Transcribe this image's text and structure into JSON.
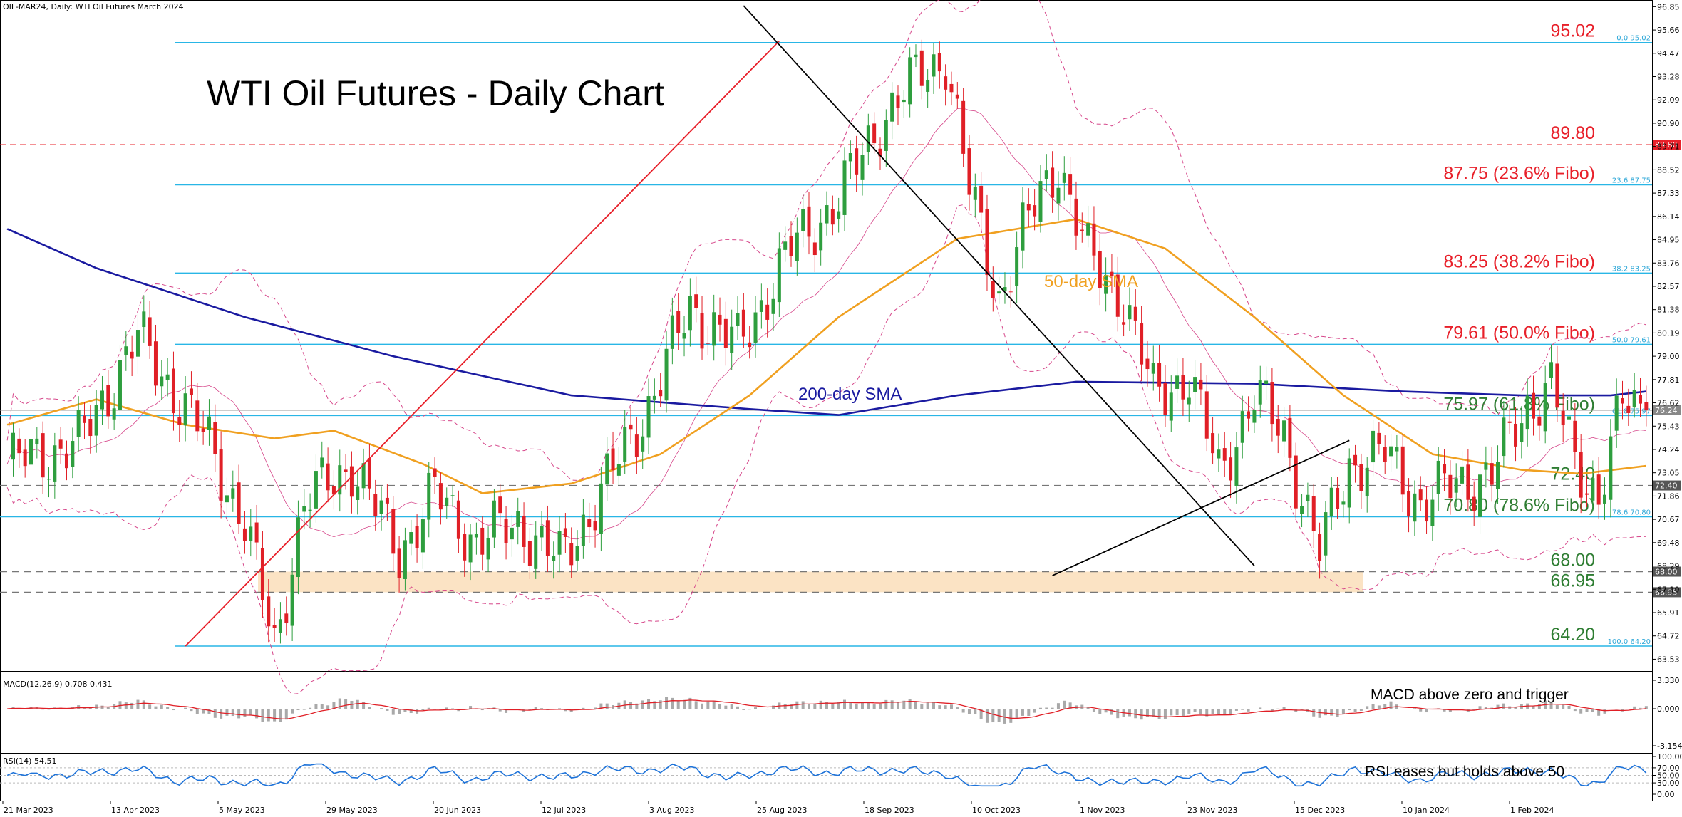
{
  "header": {
    "symbol": "OIL-MAR24, Daily:  WTI Oil Futures March 2024",
    "title": "WTI Oil Futures - Daily Chart"
  },
  "labels": {
    "sma50": "50-day SMA",
    "sma200": "200-day SMA",
    "macd_info": "MACD(12,26,9) 0.708 0.431",
    "rsi_info": "RSI(14) 54.51",
    "macd_note": "MACD above zero and trigger",
    "rsi_note": "RSI eases but holds above 50"
  },
  "levels": [
    {
      "text": "95.02",
      "value": 95.02,
      "style": "red",
      "line": "solid-cyan",
      "tag": "0.0 95.02"
    },
    {
      "text": "89.80",
      "value": 89.8,
      "style": "red",
      "line": "dash-red",
      "badge": "89.80"
    },
    {
      "text": "87.75 (23.6% Fibo)",
      "value": 87.75,
      "style": "red",
      "line": "solid-cyan",
      "tag": "23.6 87.75"
    },
    {
      "text": "83.25 (38.2% Fibo)",
      "value": 83.25,
      "style": "red",
      "line": "solid-cyan",
      "tag": "38.2 83.25"
    },
    {
      "text": "79.61 (50.0% Fibo)",
      "value": 79.61,
      "style": "red",
      "line": "solid-cyan",
      "tag": "50.0 79.61"
    },
    {
      "text": "75.97 (61.8% Fibo)",
      "value": 75.97,
      "style": "green",
      "line": "solid-cyan",
      "tag": "61.8 75.97"
    },
    {
      "text": "72.40",
      "value": 72.4,
      "style": "green",
      "line": "dash-gray",
      "badge": "72.40"
    },
    {
      "text": "70.80 (78.6% Fibo)",
      "value": 70.8,
      "style": "green",
      "line": "solid-cyan",
      "tag": "78.6 70.80"
    },
    {
      "text": "68.00",
      "value": 68.0,
      "style": "green",
      "line": "dash-gray",
      "badge": "68.00"
    },
    {
      "text": "66.95",
      "value": 66.95,
      "style": "green",
      "line": "dash-gray",
      "badge": "66.95"
    },
    {
      "text": "64.20",
      "value": 64.2,
      "style": "green",
      "line": "solid-cyan",
      "tag": "100.0 64.20"
    }
  ],
  "current_price": "76.24",
  "colors": {
    "bull": "#2e9e3e",
    "bear": "#e01f26",
    "sma50": "#f0a020",
    "sma200": "#1a1aa0",
    "fib": "#29b6e6",
    "resistance": "#e8202a",
    "support_zone": "#fbe3c4",
    "bollinger": "#d6468a"
  },
  "chart_data": {
    "type": "candlestick",
    "price_axis": {
      "ticks": [
        "96.85",
        "95.66",
        "94.47",
        "93.28",
        "92.09",
        "90.90",
        "89.71",
        "88.52",
        "87.33",
        "86.14",
        "84.95",
        "83.76",
        "82.57",
        "81.38",
        "80.19",
        "79.00",
        "77.81",
        "76.62",
        "75.43",
        "74.24",
        "73.05",
        "71.86",
        "70.67",
        "69.48",
        "68.29",
        "67.10",
        "65.91",
        "64.72",
        "63.53"
      ]
    },
    "macd_axis": {
      "ticks": [
        "3.330",
        "0.000",
        "-3.154"
      ]
    },
    "rsi_axis": {
      "ticks": [
        "100.00",
        "70.00",
        "50.00",
        "30.00",
        "0.00"
      ]
    },
    "date_ticks": [
      "21 Mar 2023",
      "13 Apr 2023",
      "5 May 2023",
      "29 May 2023",
      "20 Jun 2023",
      "12 Jul 2023",
      "3 Aug 2023",
      "25 Aug 2023",
      "18 Sep 2023",
      "10 Oct 2023",
      "1 Nov 2023",
      "23 Nov 2023",
      "15 Dec 2023",
      "10 Jan 2024",
      "1 Feb 2024"
    ],
    "pivots": [
      {
        "i": 0,
        "price": 73.5
      },
      {
        "i": 12,
        "price": 74.5
      },
      {
        "i": 22,
        "price": 80.0
      },
      {
        "i": 34,
        "price": 74.5
      },
      {
        "i": 40,
        "price": 70.5
      },
      {
        "i": 45,
        "price": 64.2
      },
      {
        "i": 50,
        "price": 71.5
      },
      {
        "i": 58,
        "price": 73.5
      },
      {
        "i": 66,
        "price": 69.0
      },
      {
        "i": 72,
        "price": 72.0
      },
      {
        "i": 79,
        "price": 69.5
      },
      {
        "i": 86,
        "price": 70.5
      },
      {
        "i": 93,
        "price": 68.5
      },
      {
        "i": 100,
        "price": 72.0
      },
      {
        "i": 108,
        "price": 76.5
      },
      {
        "i": 115,
        "price": 81.5
      },
      {
        "i": 123,
        "price": 79.5
      },
      {
        "i": 132,
        "price": 84.5
      },
      {
        "i": 140,
        "price": 87.0
      },
      {
        "i": 147,
        "price": 91.0
      },
      {
        "i": 154,
        "price": 93.5
      },
      {
        "i": 158,
        "price": 94.3
      },
      {
        "i": 162,
        "price": 87.5
      },
      {
        "i": 167,
        "price": 82.0
      },
      {
        "i": 172,
        "price": 86.0
      },
      {
        "i": 177,
        "price": 89.0
      },
      {
        "i": 182,
        "price": 84.0
      },
      {
        "i": 188,
        "price": 82.0
      },
      {
        "i": 193,
        "price": 77.0
      },
      {
        "i": 199,
        "price": 78.0
      },
      {
        "i": 204,
        "price": 73.0
      },
      {
        "i": 210,
        "price": 77.0
      },
      {
        "i": 215,
        "price": 75.0
      },
      {
        "i": 221,
        "price": 69.0
      },
      {
        "i": 226,
        "price": 73.5
      },
      {
        "i": 232,
        "price": 74.0
      },
      {
        "i": 238,
        "price": 71.5
      },
      {
        "i": 244,
        "price": 72.5
      },
      {
        "i": 250,
        "price": 73.0
      },
      {
        "i": 256,
        "price": 76.5
      },
      {
        "i": 260,
        "price": 77.5
      },
      {
        "i": 264,
        "price": 73.5
      },
      {
        "i": 268,
        "price": 72.0
      },
      {
        "i": 272,
        "price": 76.5
      },
      {
        "i": 276,
        "price": 76.2
      }
    ],
    "sma200_points": [
      {
        "x": 0,
        "y": 85.5
      },
      {
        "x": 15,
        "y": 83.5
      },
      {
        "x": 40,
        "y": 81.0
      },
      {
        "x": 65,
        "y": 79.0
      },
      {
        "x": 95,
        "y": 77.0
      },
      {
        "x": 125,
        "y": 76.3
      },
      {
        "x": 140,
        "y": 76.0
      },
      {
        "x": 160,
        "y": 77.0
      },
      {
        "x": 180,
        "y": 77.7
      },
      {
        "x": 210,
        "y": 77.6
      },
      {
        "x": 235,
        "y": 77.2
      },
      {
        "x": 255,
        "y": 77.0
      },
      {
        "x": 270,
        "y": 77.0
      },
      {
        "x": 276,
        "y": 77.2
      }
    ],
    "sma50_points": [
      {
        "x": 0,
        "y": 75.5
      },
      {
        "x": 15,
        "y": 76.8
      },
      {
        "x": 30,
        "y": 75.5
      },
      {
        "x": 45,
        "y": 74.8
      },
      {
        "x": 55,
        "y": 75.2
      },
      {
        "x": 70,
        "y": 73.5
      },
      {
        "x": 80,
        "y": 72.0
      },
      {
        "x": 95,
        "y": 72.5
      },
      {
        "x": 110,
        "y": 74.0
      },
      {
        "x": 125,
        "y": 77.0
      },
      {
        "x": 140,
        "y": 81.0
      },
      {
        "x": 160,
        "y": 85.0
      },
      {
        "x": 180,
        "y": 86.0
      },
      {
        "x": 195,
        "y": 84.5
      },
      {
        "x": 210,
        "y": 81.0
      },
      {
        "x": 225,
        "y": 77.0
      },
      {
        "x": 240,
        "y": 74.0
      },
      {
        "x": 255,
        "y": 73.2
      },
      {
        "x": 265,
        "y": 73.0
      },
      {
        "x": 276,
        "y": 73.4
      }
    ],
    "trendlines": [
      {
        "name": "up-red",
        "x1": 30,
        "y1": 64.2,
        "x2": 130,
        "y2": 95.1,
        "color": "#e8202a"
      },
      {
        "name": "down-black",
        "x1": 124,
        "y1": 96.9,
        "x2": 210,
        "y2": 68.3,
        "color": "#000"
      },
      {
        "name": "support-black",
        "x1": 176,
        "y1": 67.8,
        "x2": 226,
        "y2": 74.7,
        "color": "#000"
      }
    ],
    "support_zone": [
      66.95,
      68.0
    ]
  }
}
